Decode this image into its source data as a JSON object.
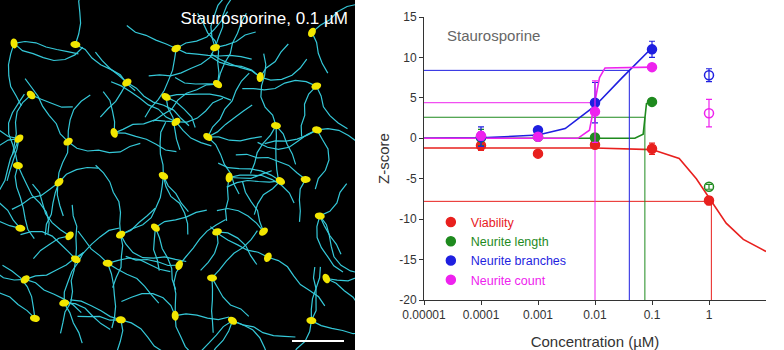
{
  "image": {
    "label": "Staurosporine, 0.1 µM"
  },
  "chart_data": {
    "type": "scatter",
    "annotations": [
      "Staurosporine"
    ],
    "x_label": "Concentration (µM)",
    "y_label": "Z-score",
    "log": "x",
    "grid": false,
    "legend": "lower left",
    "xlim": [
      1e-05,
      10
    ],
    "xticks": [
      1e-05,
      0.0001,
      0.001,
      0.01,
      0.1,
      1
    ],
    "ylim": [
      -20,
      15
    ],
    "yticks": [
      -20,
      -15,
      -10,
      -5,
      0,
      5,
      10,
      15
    ],
    "x": [
      0.0001,
      0.001,
      0.01,
      0.1,
      1
    ],
    "series": [
      {
        "name": "Viability",
        "color": "#e8201e",
        "marker": "circle",
        "values": [
          -0.9,
          -1.9,
          -0.8,
          -1.3,
          -7.7
        ],
        "errors": [
          0.6,
          0.3,
          0.3,
          0.7,
          0.5
        ],
        "excluded": [
          false,
          false,
          false,
          false,
          false
        ],
        "fit": {
          "x": [
            1e-05,
            0.01,
            0.1,
            0.3,
            0.6,
            1.1,
            2,
            4,
            10
          ],
          "values": [
            -1.2,
            -1.2,
            -1.4,
            -2.5,
            -5,
            -7.8,
            -10.5,
            -12.5,
            -14
          ]
        },
        "ec50": 1.1,
        "half_max": -7.8
      },
      {
        "name": "Neurite length",
        "color": "#1e8a1e",
        "marker": "circle",
        "values": [
          0.1,
          0.2,
          0.1,
          4.5,
          -6
        ],
        "errors": [
          1,
          0.3,
          0.3,
          0.3,
          0.3
        ],
        "excluded": [
          false,
          false,
          false,
          false,
          true
        ],
        "fit": {
          "x": [
            1e-05,
            0.05,
            0.07,
            0.075,
            0.08,
            0.1
          ],
          "values": [
            0,
            0,
            0.5,
            2.6,
            4.3,
            4.5
          ]
        },
        "ec50": 0.075,
        "half_max": 2.6
      },
      {
        "name": "Neurite branches",
        "color": "#1f1fe0",
        "marker": "circle",
        "values": [
          0.2,
          1.0,
          4.4,
          11,
          7.8
        ],
        "errors": [
          1.2,
          0.4,
          2.5,
          1,
          0.8
        ],
        "excluded": [
          false,
          false,
          false,
          false,
          true
        ],
        "fit": {
          "x": [
            1e-05,
            0.0001,
            0.001,
            0.003,
            0.01,
            0.03,
            0.1
          ],
          "values": [
            0,
            0.05,
            0.4,
            1.2,
            4,
            7.5,
            11.2
          ]
        },
        "ec50": 0.04,
        "half_max": 8.4
      },
      {
        "name": "Neurite count",
        "color": "#ee22ee",
        "marker": "circle",
        "values": [
          0.3,
          0.2,
          3.3,
          8.8,
          3.1
        ],
        "errors": [
          0.5,
          0.3,
          3.8,
          0.3,
          1.7
        ],
        "excluded": [
          false,
          false,
          false,
          false,
          true
        ],
        "fit": {
          "x": [
            1e-05,
            0.005,
            0.008,
            0.01,
            0.012,
            0.015,
            0.1
          ],
          "values": [
            0,
            0,
            1,
            4.4,
            7.5,
            8.7,
            8.8
          ]
        },
        "ec50": 0.01,
        "half_max": 4.4
      }
    ]
  }
}
